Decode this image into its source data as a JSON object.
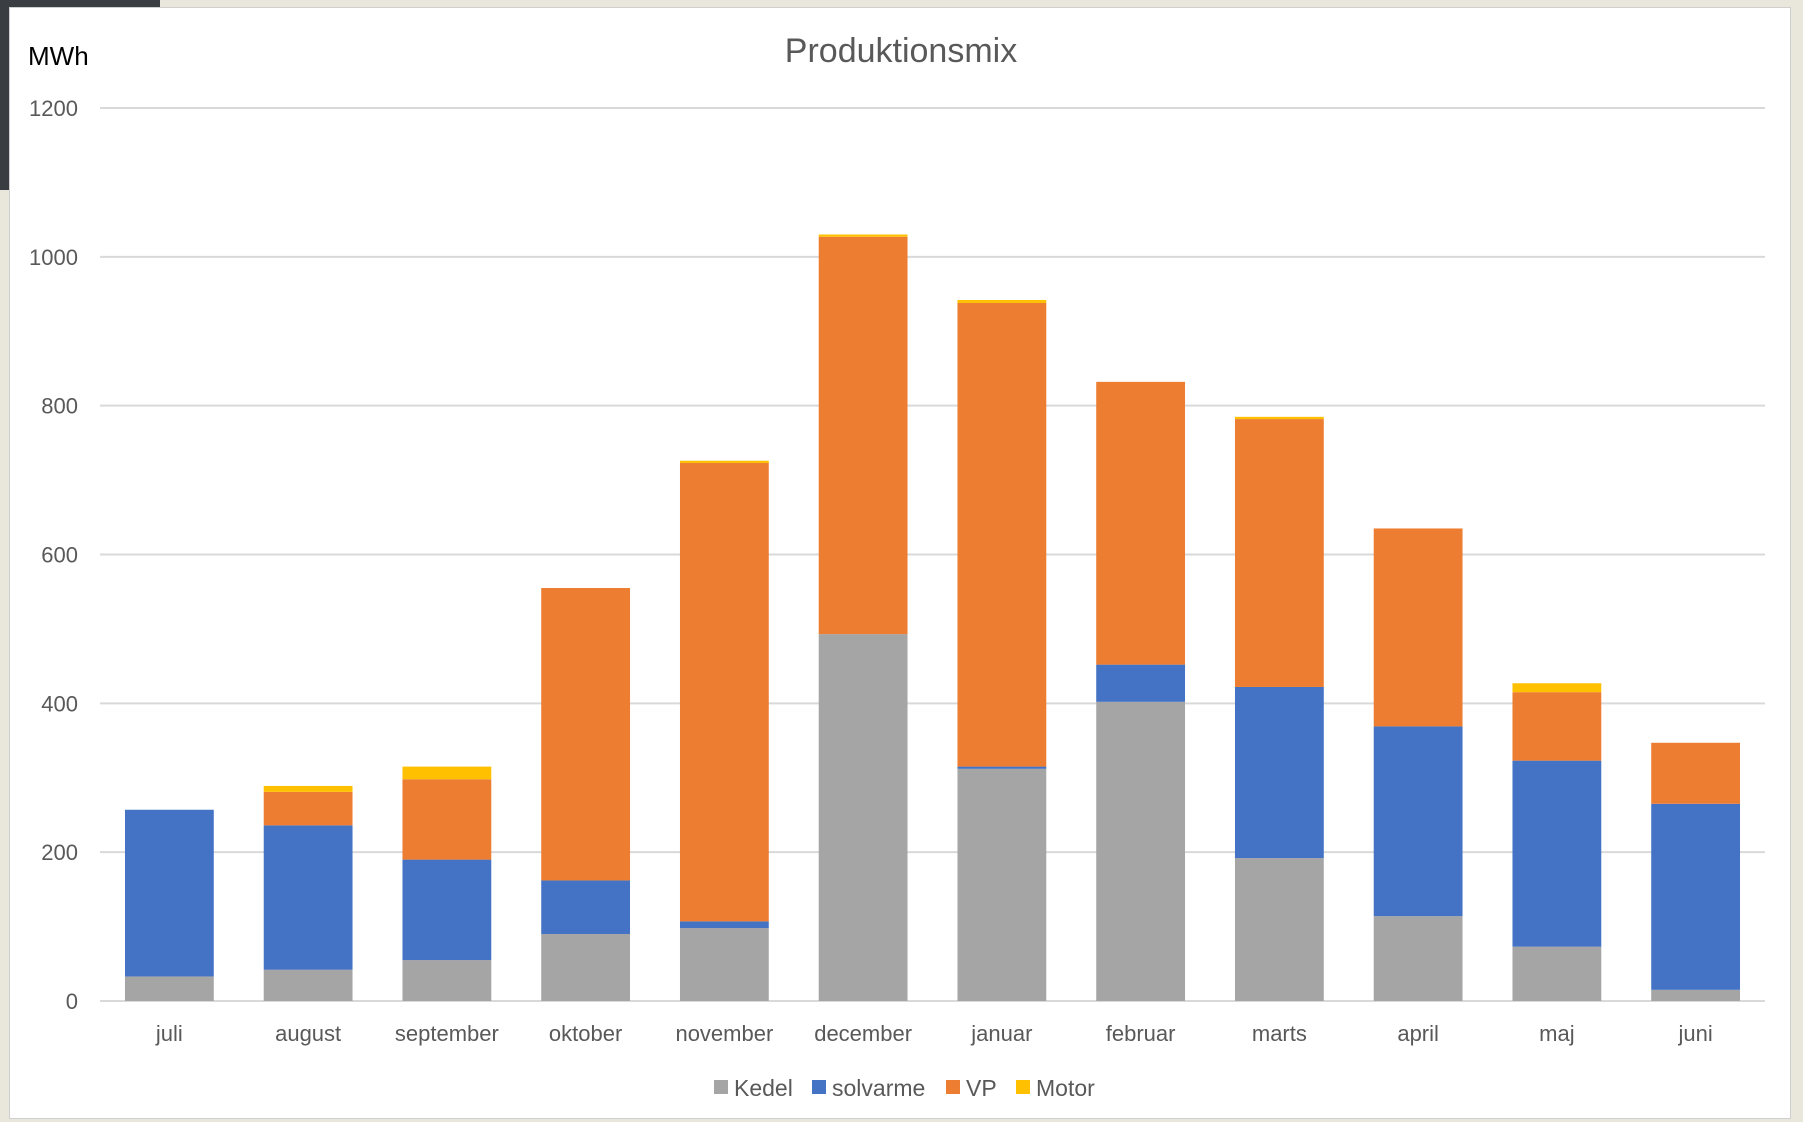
{
  "chart_data": {
    "type": "bar",
    "stacked": true,
    "title": "Produktionsmix",
    "unit_label": "MWh",
    "xlabel": "",
    "ylabel": "",
    "ylim": [
      0,
      1200
    ],
    "yticks": [
      0,
      200,
      400,
      600,
      800,
      1000,
      1200
    ],
    "grid": true,
    "legend_position": "bottom",
    "categories": [
      "juli",
      "august",
      "september",
      "oktober",
      "november",
      "december",
      "januar",
      "februar",
      "marts",
      "april",
      "maj",
      "juni"
    ],
    "series": [
      {
        "name": "Kedel",
        "color": "#a5a5a5",
        "values": [
          33,
          42,
          55,
          90,
          98,
          493,
          312,
          402,
          192,
          114,
          73,
          15
        ]
      },
      {
        "name": "solvarme",
        "color": "#4472c4",
        "values": [
          224,
          194,
          135,
          72,
          9,
          0,
          3,
          50,
          230,
          255,
          250,
          250
        ]
      },
      {
        "name": "VP",
        "color": "#ed7d31",
        "values": [
          0,
          45,
          108,
          393,
          616,
          534,
          623,
          380,
          360,
          266,
          92,
          82
        ]
      },
      {
        "name": "Motor",
        "color": "#ffc000",
        "values": [
          0,
          8,
          17,
          0,
          3,
          3,
          4,
          0,
          3,
          0,
          12,
          0
        ]
      }
    ]
  }
}
